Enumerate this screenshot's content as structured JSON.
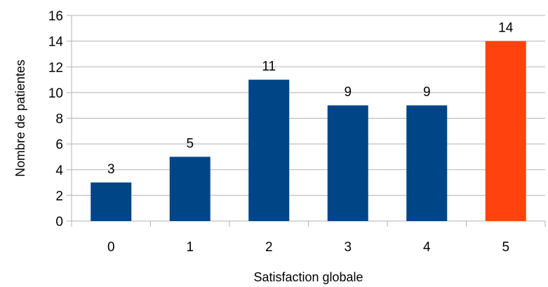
{
  "chart_data": {
    "type": "bar",
    "categories": [
      "0",
      "1",
      "2",
      "3",
      "4",
      "5"
    ],
    "values": [
      3,
      5,
      11,
      9,
      9,
      14
    ],
    "xlabel": "Satisfaction globale",
    "ylabel": "Nombre de patientes",
    "ylim": [
      0,
      16
    ],
    "yticks": [
      0,
      2,
      4,
      6,
      8,
      10,
      12,
      14,
      16
    ],
    "grid": "horizontal",
    "legend": "none",
    "data_labels": true,
    "bar_color": "#004586",
    "highlight_color": "#ff420e",
    "highlight_category": "5",
    "gridline_color": "#b3b3b3"
  }
}
